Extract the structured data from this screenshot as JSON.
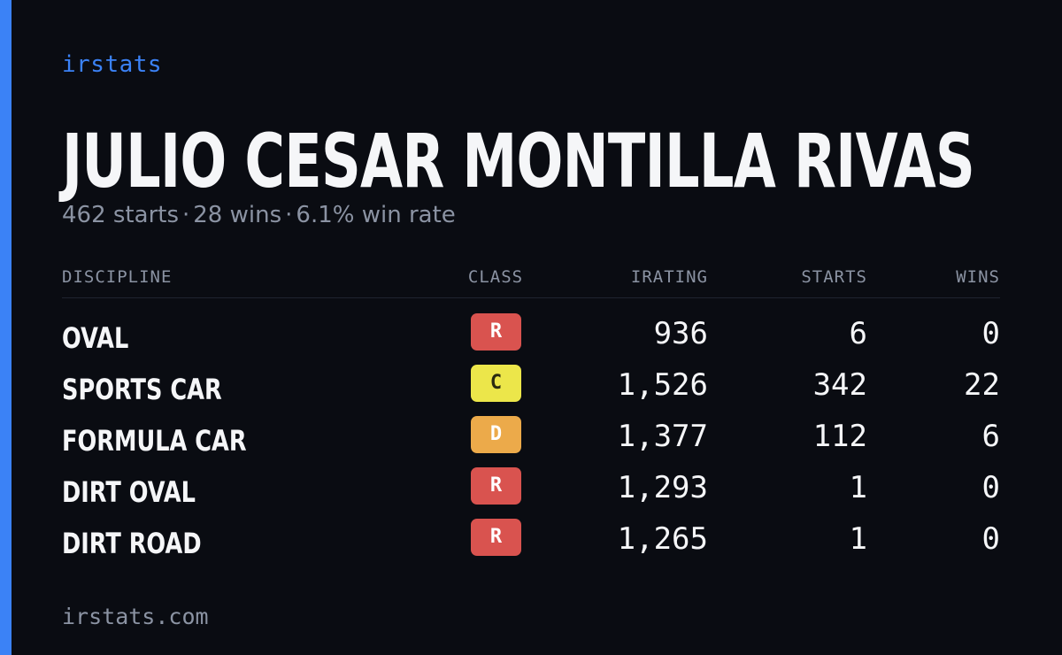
{
  "brand": "irstats",
  "driver": {
    "name": "JULIO CESAR MONTILLA RIVAS",
    "summary": {
      "starts": "462 starts",
      "wins": "28 wins",
      "win_rate": "6.1% win rate",
      "separator": "·"
    }
  },
  "table": {
    "headers": {
      "discipline": "DISCIPLINE",
      "class": "CLASS",
      "irating": "IRATING",
      "starts": "STARTS",
      "wins": "WINS"
    },
    "rows": [
      {
        "discipline": "OVAL",
        "class": "R",
        "class_color": "#d9534f",
        "class_text_color": "#ffffff",
        "irating": "936",
        "starts": "6",
        "wins": "0"
      },
      {
        "discipline": "SPORTS CAR",
        "class": "C",
        "class_color": "#ece64a",
        "class_text_color": "#2a2a10",
        "irating": "1,526",
        "starts": "342",
        "wins": "22"
      },
      {
        "discipline": "FORMULA CAR",
        "class": "D",
        "class_color": "#ecaa4a",
        "class_text_color": "#ffffff",
        "irating": "1,377",
        "starts": "112",
        "wins": "6"
      },
      {
        "discipline": "DIRT OVAL",
        "class": "R",
        "class_color": "#d9534f",
        "class_text_color": "#ffffff",
        "irating": "1,293",
        "starts": "1",
        "wins": "0"
      },
      {
        "discipline": "DIRT ROAD",
        "class": "R",
        "class_color": "#d9534f",
        "class_text_color": "#ffffff",
        "irating": "1,265",
        "starts": "1",
        "wins": "0"
      }
    ]
  },
  "footer": "irstats.com",
  "colors": {
    "background": "#0a0c12",
    "accent": "#3b82f6",
    "muted": "#8b93a3"
  }
}
